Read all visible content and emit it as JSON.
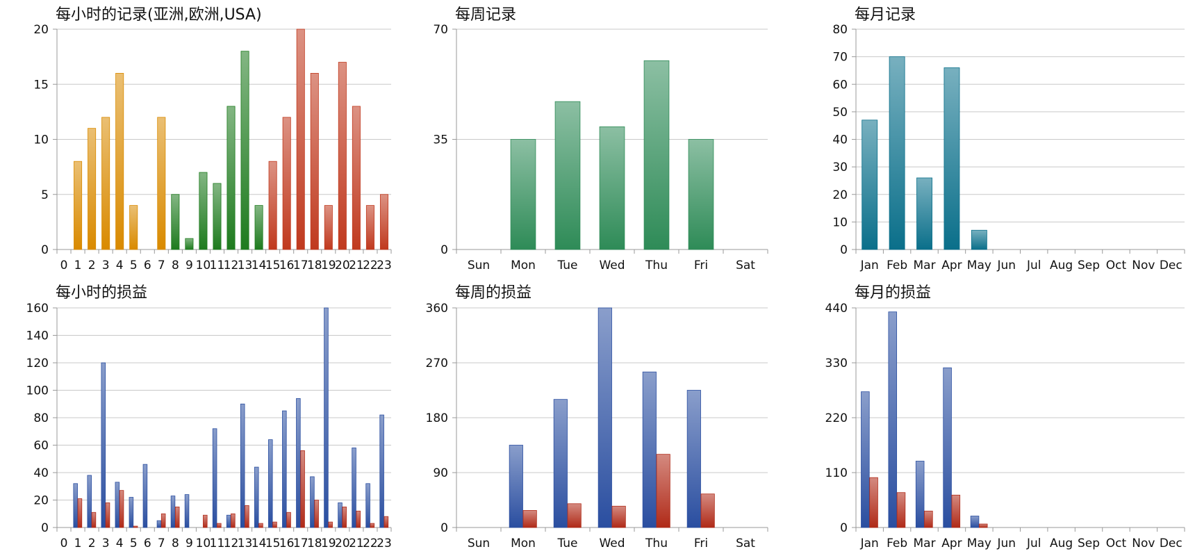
{
  "chart_data": [
    {
      "type": "bar",
      "title": "每小时的记录(亚洲,欧洲,USA)",
      "categories": [
        "0",
        "1",
        "2",
        "3",
        "4",
        "5",
        "6",
        "7",
        "8",
        "9",
        "10",
        "11",
        "12",
        "13",
        "14",
        "15",
        "16",
        "17",
        "18",
        "19",
        "20",
        "21",
        "22",
        "23"
      ],
      "ylim": [
        0,
        20
      ],
      "yticks": [
        0,
        5,
        10,
        15,
        20
      ],
      "grid": true,
      "series": [
        {
          "values": [
            0,
            8,
            11,
            12,
            16,
            4,
            0,
            12,
            5,
            1,
            7,
            6,
            13,
            18,
            4,
            8,
            12,
            20,
            16,
            4,
            17,
            13,
            4,
            5
          ]
        }
      ],
      "colors": [
        "#d98a00",
        "#d98a00",
        "#d98a00",
        "#d98a00",
        "#d98a00",
        "#d98a00",
        "#d98a00",
        "#d98a00",
        "#1e7b1e",
        "#1e7b1e",
        "#1e7b1e",
        "#1e7b1e",
        "#1e7b1e",
        "#1e7b1e",
        "#1e7b1e",
        "#c0391e",
        "#c0391e",
        "#c0391e",
        "#c0391e",
        "#c0391e",
        "#c0391e",
        "#c0391e",
        "#c0391e",
        "#c0391e"
      ]
    },
    {
      "type": "bar",
      "title": "每周记录",
      "categories": [
        "Sun",
        "Mon",
        "Tue",
        "Wed",
        "Thu",
        "Fri",
        "Sat"
      ],
      "ylim": [
        0,
        70
      ],
      "yticks": [
        0,
        35,
        70
      ],
      "grid": true,
      "series": [
        {
          "values": [
            0,
            35,
            47,
            39,
            60,
            35,
            0
          ]
        }
      ],
      "colors": [
        "#2e8b57"
      ]
    },
    {
      "type": "bar",
      "title": "每月记录",
      "categories": [
        "Jan",
        "Feb",
        "Mar",
        "Apr",
        "May",
        "Jun",
        "Jul",
        "Aug",
        "Sep",
        "Oct",
        "Nov",
        "Dec"
      ],
      "ylim": [
        0,
        80
      ],
      "yticks": [
        0,
        10,
        20,
        30,
        40,
        50,
        60,
        70,
        80
      ],
      "grid": true,
      "series": [
        {
          "values": [
            47,
            70,
            26,
            66,
            7,
            0,
            0,
            0,
            0,
            0,
            0,
            0
          ]
        }
      ],
      "colors": [
        "#0a6f8a"
      ]
    },
    {
      "type": "bar",
      "title": "每小时的损益",
      "categories": [
        "0",
        "1",
        "2",
        "3",
        "4",
        "5",
        "6",
        "7",
        "8",
        "9",
        "10",
        "11",
        "12",
        "13",
        "14",
        "15",
        "16",
        "17",
        "18",
        "19",
        "20",
        "21",
        "22",
        "23"
      ],
      "ylim": [
        0,
        160
      ],
      "yticks": [
        0,
        20,
        40,
        60,
        80,
        100,
        120,
        140,
        160
      ],
      "grid": true,
      "series": [
        {
          "values": [
            0,
            32,
            38,
            120,
            33,
            22,
            46,
            5,
            23,
            24,
            0,
            72,
            9,
            90,
            44,
            64,
            85,
            94,
            37,
            160,
            18,
            58,
            32,
            82
          ]
        },
        {
          "values": [
            0,
            21,
            11,
            18,
            27,
            1,
            0,
            10,
            15,
            0,
            9,
            3,
            10,
            16,
            3,
            4,
            11,
            56,
            20,
            4,
            15,
            12,
            3,
            8
          ]
        }
      ],
      "colors": [
        "#2a4ea0",
        "#b02a18"
      ]
    },
    {
      "type": "bar",
      "title": "每周的损益",
      "categories": [
        "Sun",
        "Mon",
        "Tue",
        "Wed",
        "Thu",
        "Fri",
        "Sat"
      ],
      "ylim": [
        0,
        360
      ],
      "yticks": [
        0,
        90,
        180,
        270,
        360
      ],
      "grid": true,
      "series": [
        {
          "values": [
            0,
            135,
            210,
            360,
            255,
            225,
            0
          ]
        },
        {
          "values": [
            0,
            28,
            39,
            35,
            120,
            55,
            0
          ]
        }
      ],
      "colors": [
        "#2a4ea0",
        "#b02a18"
      ]
    },
    {
      "type": "bar",
      "title": "每月的损益",
      "categories": [
        "Jan",
        "Feb",
        "Mar",
        "Apr",
        "May",
        "Jun",
        "Jul",
        "Aug",
        "Sep",
        "Oct",
        "Nov",
        "Dec"
      ],
      "ylim": [
        0,
        440
      ],
      "yticks": [
        0,
        110,
        220,
        330,
        440
      ],
      "grid": true,
      "series": [
        {
          "values": [
            272,
            432,
            133,
            320,
            23,
            0,
            0,
            0,
            0,
            0,
            0,
            0
          ]
        },
        {
          "values": [
            100,
            70,
            33,
            65,
            7,
            0,
            0,
            0,
            0,
            0,
            0,
            0
          ]
        }
      ],
      "colors": [
        "#2a4ea0",
        "#b02a18"
      ]
    }
  ]
}
